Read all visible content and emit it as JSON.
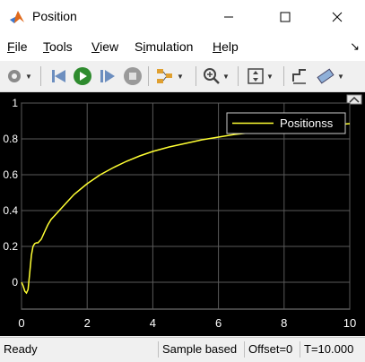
{
  "window": {
    "title": "Position"
  },
  "menu": {
    "items": [
      {
        "label": "File",
        "u": "F",
        "rest": "ile"
      },
      {
        "label": "Tools",
        "u": "T",
        "rest": "ools"
      },
      {
        "label": "View",
        "u": "V",
        "rest": "iew"
      },
      {
        "label": "Simulation",
        "pre": "S",
        "u": "i",
        "rest": "mulation"
      },
      {
        "label": "Help",
        "u": "H",
        "rest": "elp"
      }
    ]
  },
  "toolbar": {
    "icons": [
      "settings-icon",
      "step-back-icon",
      "run-icon",
      "step-forward-icon",
      "stop-icon",
      "highlight-icon",
      "zoom-icon",
      "autoscale-icon",
      "triggers-icon",
      "cursor-measure-icon"
    ]
  },
  "status": {
    "state": "Ready",
    "mode": "Sample based",
    "offset": "Offset=0",
    "time": "T=10.000"
  },
  "colors": {
    "background": "#000000",
    "axes": "#000000",
    "grid": "#5a5a5a",
    "line": "#ffff33",
    "tick": "#ffffff"
  },
  "chart_data": {
    "type": "line",
    "xlim": [
      0,
      10
    ],
    "ylim": [
      -0.15,
      1.0
    ],
    "xticks": [
      0,
      2,
      4,
      6,
      8,
      10
    ],
    "yticks": [
      0,
      0.2,
      0.4,
      0.6,
      0.8,
      1
    ],
    "xtick_labels": [
      "0",
      "2",
      "4",
      "6",
      "8",
      "10"
    ],
    "ytick_labels": [
      "0",
      "0.2",
      "0.4",
      "0.6",
      "0.8",
      "1"
    ],
    "grid": true,
    "legend_position": "top-right",
    "series": [
      {
        "name": "Positionss",
        "color": "#ffff33",
        "x": [
          0,
          0.05,
          0.1,
          0.15,
          0.2,
          0.25,
          0.3,
          0.35,
          0.4,
          0.45,
          0.5,
          0.6,
          0.7,
          0.8,
          0.9,
          1.0,
          1.2,
          1.4,
          1.6,
          1.8,
          2.0,
          2.4,
          2.8,
          3.2,
          3.6,
          4.0,
          4.5,
          5.0,
          5.5,
          6.0,
          6.5,
          7.0,
          7.5,
          8.0,
          8.5,
          9.0,
          9.5,
          10
        ],
        "y": [
          0,
          -0.02,
          -0.05,
          -0.06,
          -0.04,
          0.05,
          0.15,
          0.2,
          0.215,
          0.22,
          0.22,
          0.24,
          0.28,
          0.32,
          0.35,
          0.37,
          0.41,
          0.45,
          0.49,
          0.52,
          0.55,
          0.6,
          0.64,
          0.675,
          0.705,
          0.73,
          0.755,
          0.775,
          0.795,
          0.81,
          0.825,
          0.835,
          0.845,
          0.855,
          0.862,
          0.87,
          0.878,
          0.885
        ]
      }
    ]
  }
}
